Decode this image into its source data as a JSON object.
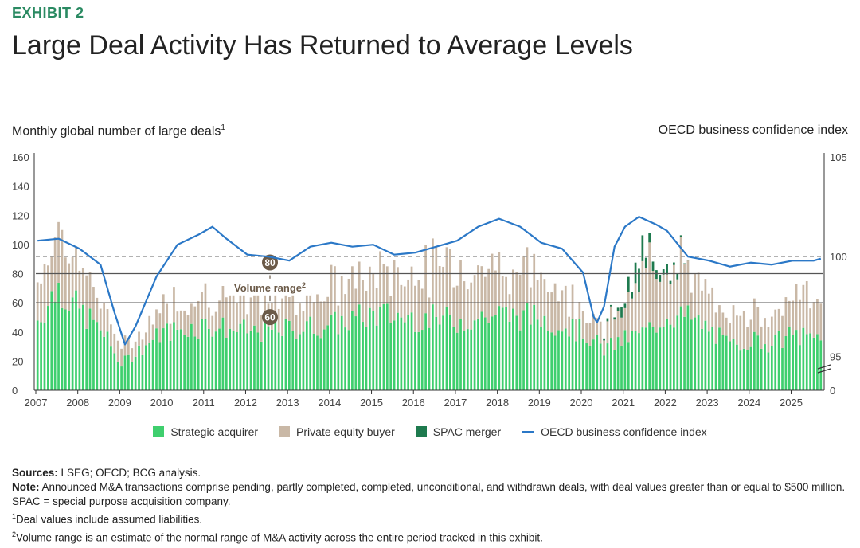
{
  "header": {
    "exhibit": "EXHIBIT 2",
    "title": "Large Deal Activity Has Returned to Average Levels",
    "left_axis_label": "Monthly global number of large deals",
    "left_axis_sup": "1",
    "right_axis_label": "OECD business confidence index"
  },
  "chart_data": {
    "type": "bar",
    "stacked": true,
    "x_range": [
      "2007-01",
      "2025-09"
    ],
    "x_ticks": [
      "2007",
      "2008",
      "2009",
      "2010",
      "2011",
      "2012",
      "2013",
      "2014",
      "2015",
      "2016",
      "2017",
      "2018",
      "2019",
      "2020",
      "2021",
      "2022",
      "2023",
      "2024",
      "2025"
    ],
    "y_left": {
      "ticks": [
        0,
        20,
        40,
        60,
        80,
        100,
        120,
        140,
        160
      ],
      "ylim": [
        0,
        160
      ]
    },
    "y_right": {
      "ticks": [
        "0",
        "95",
        "100",
        "105"
      ],
      "ylim": [
        93.3,
        105
      ],
      "axis_break": true
    },
    "volume_range": {
      "low": 60,
      "high": 80,
      "label": "Volume range",
      "label_sup": "2",
      "low_label": "60",
      "high_label": "80"
    },
    "oecd_reference": 100,
    "series": [
      {
        "name": "Strategic acquirer",
        "color": "#3fcf6e",
        "anchors": [
          [
            0,
            48
          ],
          [
            6,
            72
          ],
          [
            9,
            62
          ],
          [
            12,
            55
          ],
          [
            18,
            42
          ],
          [
            24,
            18
          ],
          [
            30,
            30
          ],
          [
            36,
            40
          ],
          [
            48,
            45
          ],
          [
            60,
            40
          ],
          [
            72,
            42
          ],
          [
            84,
            45
          ],
          [
            96,
            52
          ],
          [
            108,
            50
          ],
          [
            120,
            48
          ],
          [
            132,
            52
          ],
          [
            144,
            50
          ],
          [
            156,
            40
          ],
          [
            162,
            28
          ],
          [
            168,
            35
          ],
          [
            174,
            40
          ],
          [
            180,
            52
          ],
          [
            186,
            50
          ],
          [
            192,
            42
          ],
          [
            198,
            30
          ],
          [
            204,
            35
          ],
          [
            210,
            32
          ],
          [
            216,
            38
          ],
          [
            222,
            35
          ],
          [
            224,
            40
          ]
        ]
      },
      {
        "name": "Private equity buyer",
        "color": "#c9b8a6",
        "anchors": [
          [
            0,
            25
          ],
          [
            6,
            42
          ],
          [
            9,
            35
          ],
          [
            12,
            30
          ],
          [
            18,
            22
          ],
          [
            24,
            10
          ],
          [
            30,
            12
          ],
          [
            36,
            18
          ],
          [
            48,
            22
          ],
          [
            60,
            20
          ],
          [
            72,
            22
          ],
          [
            84,
            25
          ],
          [
            96,
            28
          ],
          [
            108,
            32
          ],
          [
            120,
            40
          ],
          [
            132,
            32
          ],
          [
            144,
            30
          ],
          [
            156,
            18
          ],
          [
            162,
            12
          ],
          [
            168,
            25
          ],
          [
            174,
            38
          ],
          [
            180,
            45
          ],
          [
            186,
            30
          ],
          [
            192,
            20
          ],
          [
            198,
            18
          ],
          [
            204,
            22
          ],
          [
            210,
            22
          ],
          [
            216,
            25
          ],
          [
            222,
            28
          ],
          [
            224,
            30
          ]
        ]
      },
      {
        "name": "SPAC merger",
        "color": "#1e7a4e",
        "anchors": [
          [
            0,
            0
          ],
          [
            160,
            0
          ],
          [
            164,
            2
          ],
          [
            168,
            6
          ],
          [
            174,
            14
          ],
          [
            177,
            12
          ],
          [
            180,
            5
          ],
          [
            184,
            2
          ],
          [
            188,
            0
          ],
          [
            224,
            0
          ]
        ]
      }
    ],
    "line": {
      "name": "OECD business confidence index",
      "color": "#2b78c7",
      "points": [
        [
          0,
          100.8
        ],
        [
          6,
          100.9
        ],
        [
          12,
          100.4
        ],
        [
          18,
          99.6
        ],
        [
          22,
          97.2
        ],
        [
          25,
          95.6
        ],
        [
          28,
          96.5
        ],
        [
          34,
          99
        ],
        [
          40,
          100.6
        ],
        [
          46,
          101.1
        ],
        [
          50,
          101.5
        ],
        [
          54,
          100.9
        ],
        [
          60,
          100.1
        ],
        [
          66,
          100
        ],
        [
          72,
          99.8
        ],
        [
          78,
          100.5
        ],
        [
          84,
          100.7
        ],
        [
          90,
          100.5
        ],
        [
          96,
          100.6
        ],
        [
          102,
          100.1
        ],
        [
          108,
          100.2
        ],
        [
          114,
          100.5
        ],
        [
          120,
          100.8
        ],
        [
          126,
          101.5
        ],
        [
          132,
          101.9
        ],
        [
          138,
          101.5
        ],
        [
          144,
          100.7
        ],
        [
          150,
          100.4
        ],
        [
          156,
          99.2
        ],
        [
          159,
          97
        ],
        [
          160,
          96.7
        ],
        [
          162,
          97.5
        ],
        [
          165,
          100.5
        ],
        [
          168,
          101.5
        ],
        [
          172,
          102
        ],
        [
          177,
          101.6
        ],
        [
          180,
          101.3
        ],
        [
          186,
          100
        ],
        [
          192,
          99.8
        ],
        [
          198,
          99.5
        ],
        [
          204,
          99.7
        ],
        [
          210,
          99.6
        ],
        [
          216,
          99.8
        ],
        [
          222,
          99.8
        ],
        [
          224,
          99.9
        ]
      ]
    }
  },
  "legend": {
    "strategic": "Strategic acquirer",
    "pe": "Private equity buyer",
    "spac": "SPAC merger",
    "oecd": "OECD business confidence index"
  },
  "notes": {
    "sources_label": "Sources:",
    "sources_text": "LSEG; OECD; BCG analysis.",
    "note_label": "Note:",
    "note_text": "Announced M&A transactions comprise pending, partly completed, completed, unconditional, and withdrawn deals, with deal values greater than or equal to $500 million. SPAC = special purpose acquisition company.",
    "fn1_sup": "1",
    "fn1_text": "Deal values include assumed liabilities.",
    "fn2_sup": "2",
    "fn2_text": "Volume range is an estimate of the normal range of M&A activity across the entire period tracked in this exhibit."
  }
}
